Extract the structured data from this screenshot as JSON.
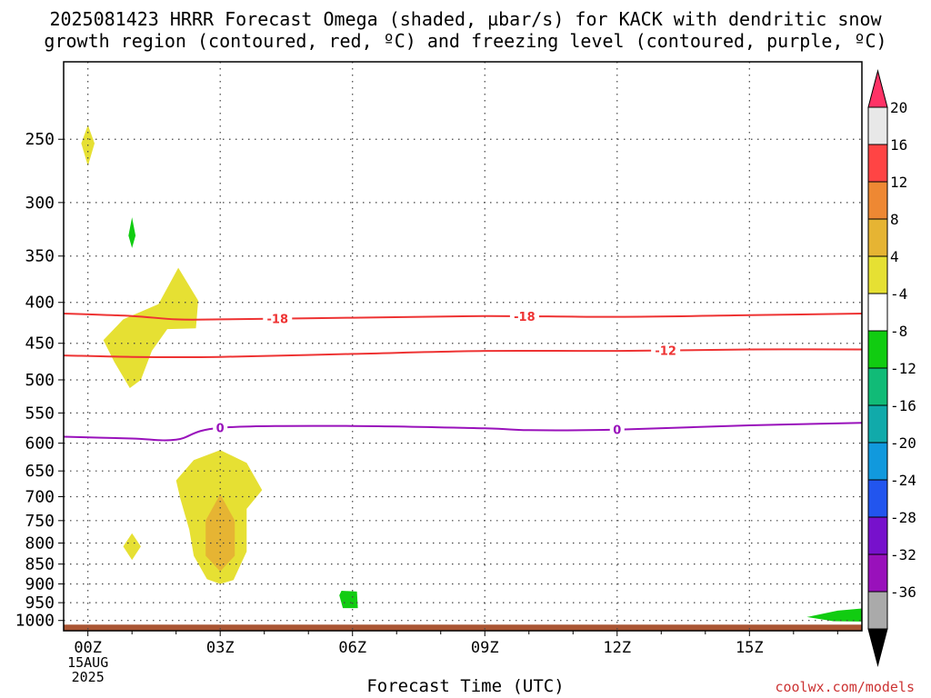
{
  "title_line1": "2025081423 HRRR Forecast Omega (shaded, µbar/s) for KACK with dendritic snow",
  "title_line2": "growth region (contoured, red, ºC) and freezing level (contoured, purple, ºC)",
  "credit": "coolwx.com/models",
  "chart_data": {
    "type": "contour",
    "title": "2025081423 HRRR Forecast Omega (shaded, µbar/s) for KACK with dendritic snow growth region (contoured, red, ºC) and freezing level (contoured, purple, ºC)",
    "xlabel": "Forecast Time (UTC)",
    "ylabel": "",
    "x_unit": "forecast hour",
    "xlim": [
      -0.55,
      17.55
    ],
    "y_scale": "log-pressure",
    "ylim": [
      1030,
      200
    ],
    "x_ticks": [
      {
        "hour": 0,
        "label": "00Z",
        "sub1": "15AUG",
        "sub2": "2025"
      },
      {
        "hour": 3,
        "label": "03Z"
      },
      {
        "hour": 6,
        "label": "06Z"
      },
      {
        "hour": 9,
        "label": "09Z"
      },
      {
        "hour": 12,
        "label": "12Z"
      },
      {
        "hour": 15,
        "label": "15Z"
      }
    ],
    "y_ticks": [
      250,
      300,
      350,
      400,
      450,
      500,
      550,
      600,
      650,
      700,
      750,
      800,
      850,
      900,
      950,
      1000
    ],
    "grid": true,
    "colorbar": {
      "unit": "µbar/s",
      "labels": [
        "20",
        "16",
        "12",
        "8",
        "4",
        "-4",
        "-8",
        "-12",
        "-16",
        "-20",
        "-24",
        "-28",
        "-32",
        "-36"
      ],
      "colors": [
        "#ff3366",
        "#e8e8e8",
        "#ff4444",
        "#ee8833",
        "#e6b433",
        "#e6e033",
        "#ffffff",
        "#11cc11",
        "#11bb77",
        "#11aaaa",
        "#1199dd",
        "#2255ee",
        "#7711cc",
        "#9911bb",
        "#aaaaaa",
        "#000000"
      ]
    },
    "series": [
      {
        "name": "-18",
        "type": "contour",
        "color": "#ee3333",
        "label_at_hours": [
          4.3,
          9.9
        ],
        "points": [
          [
            -0.55,
            413
          ],
          [
            1,
            416
          ],
          [
            2,
            420
          ],
          [
            3,
            420
          ],
          [
            6,
            418
          ],
          [
            9,
            416
          ],
          [
            12,
            417
          ],
          [
            15,
            415
          ],
          [
            17.55,
            413
          ]
        ]
      },
      {
        "name": "-12",
        "type": "contour",
        "color": "#ee3333",
        "label_at_hours": [
          13.1
        ],
        "points": [
          [
            -0.55,
            466
          ],
          [
            1,
            468
          ],
          [
            3,
            468
          ],
          [
            6,
            464
          ],
          [
            9,
            460
          ],
          [
            12,
            460
          ],
          [
            15,
            458
          ],
          [
            17.55,
            458
          ]
        ]
      },
      {
        "name": "0",
        "type": "contour",
        "color": "#9911bb",
        "label_at_hours": [
          3.0,
          12.0
        ],
        "points": [
          [
            -0.55,
            589
          ],
          [
            1,
            592
          ],
          [
            2,
            594
          ],
          [
            3,
            574
          ],
          [
            6,
            571
          ],
          [
            9,
            575
          ],
          [
            10,
            578
          ],
          [
            12,
            577
          ],
          [
            15,
            570
          ],
          [
            17.55,
            566
          ]
        ]
      }
    ],
    "shaded_regions": [
      {
        "value_bin": "4 to 8",
        "color": "#e6e033",
        "points": [
          [
            0,
            240
          ],
          [
            0.15,
            253
          ],
          [
            0,
            270
          ],
          [
            -0.15,
            253
          ]
        ]
      },
      {
        "value_bin": "-8 to -4",
        "color": "#11cc11",
        "points": [
          [
            1,
            313
          ],
          [
            1.08,
            330
          ],
          [
            1,
            342
          ],
          [
            0.92,
            330
          ]
        ]
      },
      {
        "value_bin": "4 to 8",
        "color": "#e6e033",
        "points": [
          [
            2.05,
            362
          ],
          [
            2.5,
            398
          ],
          [
            2.45,
            431
          ],
          [
            1.8,
            432
          ],
          [
            1.45,
            460
          ],
          [
            1.2,
            500
          ],
          [
            0.95,
            512
          ],
          [
            0.6,
            475
          ],
          [
            0.35,
            446
          ],
          [
            0.8,
            420
          ],
          [
            1.6,
            402
          ]
        ]
      },
      {
        "value_bin": "4 to 8",
        "color": "#e6e033",
        "points": [
          [
            3,
            612
          ],
          [
            3.6,
            635
          ],
          [
            3.95,
            687
          ],
          [
            3.6,
            725
          ],
          [
            3.6,
            820
          ],
          [
            3.3,
            890
          ],
          [
            3,
            900
          ],
          [
            2.7,
            888
          ],
          [
            2.4,
            830
          ],
          [
            2.3,
            770
          ],
          [
            2.1,
            705
          ],
          [
            2.0,
            668
          ],
          [
            2.4,
            630
          ]
        ]
      },
      {
        "value_bin": "8 to 12",
        "color": "#e6b433",
        "points": [
          [
            3,
            695
          ],
          [
            3.33,
            750
          ],
          [
            3.33,
            830
          ],
          [
            3,
            868
          ],
          [
            2.67,
            830
          ],
          [
            2.67,
            750
          ]
        ]
      },
      {
        "value_bin": "4 to 8",
        "color": "#e6e033",
        "points": [
          [
            1,
            778
          ],
          [
            1.2,
            808
          ],
          [
            1,
            840
          ],
          [
            0.8,
            808
          ]
        ]
      },
      {
        "value_bin": "-8 to -4",
        "color": "#11cc11",
        "points": [
          [
            5.75,
            918
          ],
          [
            6.1,
            920
          ],
          [
            6.12,
            965
          ],
          [
            5.78,
            965
          ],
          [
            5.7,
            930
          ]
        ]
      },
      {
        "value_bin": "-8 to -4",
        "color": "#11cc11",
        "points": [
          [
            16.3,
            990
          ],
          [
            17.0,
            972
          ],
          [
            17.55,
            966
          ],
          [
            17.55,
            1003
          ],
          [
            16.9,
            1002
          ]
        ]
      }
    ],
    "surface": {
      "color": "#aa5533",
      "pressure_from": 1012
    }
  }
}
